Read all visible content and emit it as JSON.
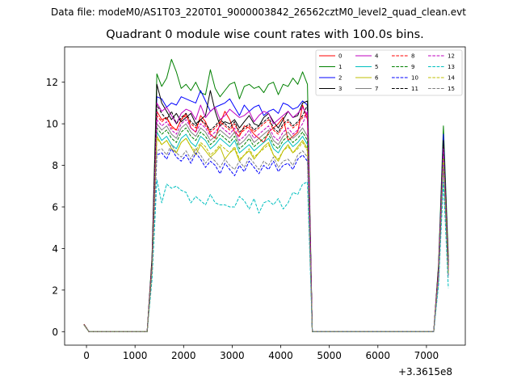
{
  "suptitle": "Data file: modeM0/AS1T03_220T01_9000003842_26562cztM0_level2_quad_clean.evt",
  "chart_data": {
    "type": "line",
    "title": "Quadrant 0 module wise count rates with 100.0s bins.",
    "xlabel": "",
    "ylabel": "",
    "x_offset_label": "+3.3615e8",
    "xlim": [
      -450,
      7800
    ],
    "ylim": [
      -0.65,
      13.7
    ],
    "xticks": [
      0,
      1000,
      2000,
      3000,
      4000,
      5000,
      6000,
      7000
    ],
    "xtick_labels": [
      "0",
      "1000",
      "2000",
      "3000",
      "4000",
      "5000",
      "6000",
      "7000"
    ],
    "yticks": [
      0,
      2,
      4,
      6,
      8,
      10,
      12
    ],
    "ytick_labels": [
      "0",
      "2",
      "4",
      "6",
      "8",
      "10",
      "12"
    ],
    "grid": false,
    "legend_position": "top-right",
    "legend_columns": 4,
    "x_note": "Points every 100 s: -50..1250 (flat), 1350..4550 (plateau), 4650..7150 (flat), 7250..7350 (spike), 7450 (end).",
    "series": [
      {
        "name": "0",
        "color": "#ff0000",
        "dash": "solid",
        "start": 0.36,
        "ramp": 3.2,
        "spike": 8.2,
        "end": 3.1,
        "plateau": [
          10.6,
          10.2,
          10.3,
          9.9,
          9.7,
          10.2,
          10.5,
          9.8,
          9.6,
          10.4,
          10.1,
          9.5,
          9.3,
          10.0,
          10.6,
          10.2,
          9.6,
          9.4,
          9.9,
          9.8,
          9.5,
          9.3,
          9.1,
          9.6,
          9.8,
          10.0,
          10.3,
          9.2,
          9.4,
          9.6,
          10.9,
          10.2,
          10.6
        ]
      },
      {
        "name": "1",
        "color": "#008000",
        "dash": "solid",
        "start": 0.34,
        "ramp": 3.6,
        "spike": 9.9,
        "end": 3.6,
        "plateau": [
          12.4,
          11.8,
          12.2,
          13.1,
          12.5,
          11.7,
          11.9,
          11.6,
          12.0,
          11.5,
          11.4,
          12.6,
          11.7,
          11.3,
          11.6,
          11.9,
          12.0,
          11.2,
          11.8,
          11.9,
          11.7,
          11.8,
          11.5,
          11.9,
          12.0,
          11.4,
          11.9,
          11.8,
          12.2,
          11.9,
          12.5,
          11.9,
          11.1
        ]
      },
      {
        "name": "2",
        "color": "#0000ff",
        "dash": "solid",
        "start": 0.33,
        "ramp": 3.4,
        "spike": 9.5,
        "end": 3.2,
        "plateau": [
          11.3,
          11.2,
          10.8,
          11.0,
          10.9,
          11.3,
          11.2,
          11.1,
          11.0,
          11.6,
          11.1,
          10.6,
          10.8,
          10.9,
          11.0,
          11.2,
          10.8,
          10.4,
          10.9,
          10.6,
          10.8,
          10.9,
          10.4,
          10.6,
          10.7,
          10.5,
          11.0,
          10.9,
          10.7,
          10.8,
          11.1,
          10.9,
          10.4
        ]
      },
      {
        "name": "3",
        "color": "#000000",
        "dash": "solid",
        "start": 0.35,
        "ramp": 3.5,
        "spike": 9.2,
        "end": 3.3,
        "plateau": [
          11.9,
          11.0,
          10.6,
          10.2,
          10.5,
          10.1,
          10.3,
          10.5,
          10.0,
          10.2,
          10.4,
          11.6,
          10.6,
          9.9,
          10.1,
          10.0,
          10.2,
          9.8,
          10.1,
          10.4,
          10.0,
          9.9,
          10.3,
          10.5,
          10.1,
          9.8,
          10.2,
          10.6,
          10.3,
          10.4,
          11.0,
          11.1,
          10.1
        ]
      },
      {
        "name": "4",
        "color": "#bf00bf",
        "dash": "solid",
        "start": 0.34,
        "ramp": 3.3,
        "spike": 8.8,
        "end": 3.0,
        "plateau": [
          11.0,
          10.6,
          10.8,
          10.4,
          10.0,
          10.5,
          10.7,
          10.6,
          10.2,
          10.9,
          10.3,
          10.6,
          10.8,
          10.2,
          10.4,
          10.7,
          10.5,
          10.3,
          10.4,
          10.6,
          10.1,
          10.4,
          10.6,
          10.5,
          10.0,
          10.2,
          10.4,
          10.6,
          10.3,
          10.5,
          10.8,
          10.4,
          10.2
        ]
      },
      {
        "name": "5",
        "color": "#00bfbf",
        "dash": "solid",
        "start": 0.33,
        "ramp": 3.1,
        "spike": 8.5,
        "end": 2.9,
        "plateau": [
          9.6,
          9.2,
          9.4,
          9.0,
          8.8,
          9.3,
          9.5,
          9.1,
          8.9,
          9.4,
          9.2,
          8.8,
          9.0,
          9.3,
          9.1,
          8.9,
          9.2,
          8.6,
          8.8,
          9.0,
          8.7,
          8.9,
          9.1,
          9.3,
          8.8,
          8.6,
          9.0,
          9.2,
          8.9,
          9.1,
          9.4,
          9.0,
          8.8
        ]
      },
      {
        "name": "6",
        "color": "#bfbf00",
        "dash": "solid",
        "start": 0.32,
        "ramp": 3.0,
        "spike": 8.4,
        "end": 2.8,
        "plateau": [
          9.4,
          9.0,
          9.2,
          8.8,
          8.6,
          9.1,
          9.3,
          8.9,
          8.5,
          9.0,
          8.7,
          8.4,
          8.6,
          8.9,
          8.3,
          8.6,
          8.8,
          8.2,
          8.5,
          8.7,
          8.3,
          8.6,
          8.9,
          9.1,
          8.5,
          8.2,
          8.7,
          9.0,
          8.6,
          8.9,
          9.2,
          8.8,
          8.5
        ]
      },
      {
        "name": "7",
        "color": "#7f7f7f",
        "dash": "solid",
        "start": 0.33,
        "ramp": 3.2,
        "spike": 8.6,
        "end": 3.0,
        "plateau": [
          10.0,
          9.7,
          9.9,
          9.5,
          9.3,
          9.8,
          10.0,
          9.6,
          9.4,
          9.8,
          9.6,
          9.2,
          9.4,
          9.7,
          9.5,
          9.3,
          9.6,
          9.0,
          9.2,
          9.5,
          9.1,
          9.3,
          9.5,
          9.7,
          9.2,
          9.0,
          9.4,
          9.6,
          9.3,
          9.5,
          9.8,
          9.4,
          9.1
        ]
      },
      {
        "name": "8",
        "color": "#ff0000",
        "dash": "dashed",
        "start": 0.35,
        "ramp": 3.3,
        "spike": 8.9,
        "end": 3.1,
        "plateau": [
          10.4,
          10.1,
          10.3,
          9.8,
          9.7,
          10.2,
          10.4,
          10.0,
          9.8,
          10.2,
          9.9,
          9.6,
          9.8,
          10.1,
          9.9,
          9.7,
          10.0,
          9.5,
          9.7,
          9.9,
          9.6,
          9.8,
          10.0,
          10.2,
          9.7,
          9.5,
          9.9,
          10.1,
          9.8,
          10.0,
          10.3,
          10.5,
          10.0
        ]
      },
      {
        "name": "9",
        "color": "#008000",
        "dash": "dashed",
        "start": 0.34,
        "ramp": 3.1,
        "spike": 8.7,
        "end": 2.9,
        "plateau": [
          9.8,
          9.5,
          9.7,
          9.3,
          9.1,
          9.6,
          9.8,
          9.4,
          9.2,
          9.6,
          9.4,
          9.0,
          9.2,
          9.5,
          9.3,
          9.1,
          9.4,
          8.8,
          9.0,
          9.3,
          8.9,
          9.1,
          9.3,
          9.5,
          9.0,
          8.8,
          9.2,
          9.4,
          9.1,
          9.3,
          9.6,
          9.2,
          8.9
        ]
      },
      {
        "name": "10",
        "color": "#0000ff",
        "dash": "dashed",
        "start": 0.33,
        "ramp": 2.8,
        "spike": 8.2,
        "end": 2.7,
        "plateau": [
          8.5,
          8.6,
          8.3,
          8.8,
          8.4,
          8.2,
          8.5,
          8.1,
          8.6,
          8.3,
          7.9,
          8.2,
          8.0,
          7.6,
          8.1,
          7.8,
          7.5,
          8.0,
          7.7,
          8.2,
          7.9,
          7.6,
          8.0,
          7.8,
          8.2,
          7.7,
          8.0,
          8.1,
          7.8,
          8.3,
          8.5,
          8.2,
          7.9
        ]
      },
      {
        "name": "11",
        "color": "#000000",
        "dash": "dashed",
        "start": 0.34,
        "ramp": 3.3,
        "spike": 9.0,
        "end": 3.2,
        "plateau": [
          10.9,
          10.5,
          10.2,
          10.6,
          10.0,
          10.3,
          10.5,
          10.1,
          9.9,
          10.2,
          10.0,
          9.7,
          9.9,
          10.2,
          10.0,
          9.8,
          10.1,
          9.6,
          9.8,
          10.0,
          9.7,
          9.9,
          10.1,
          10.3,
          9.8,
          9.6,
          10.0,
          10.2,
          9.9,
          10.1,
          10.4,
          10.9,
          10.3
        ]
      },
      {
        "name": "12",
        "color": "#bf00bf",
        "dash": "dashed",
        "start": 0.33,
        "ramp": 3.2,
        "spike": 8.8,
        "end": 3.0,
        "plateau": [
          10.2,
          9.9,
          10.1,
          9.7,
          9.5,
          10.0,
          10.2,
          9.8,
          9.6,
          10.0,
          9.8,
          9.4,
          9.6,
          9.9,
          9.7,
          9.5,
          9.8,
          9.2,
          9.4,
          9.7,
          9.3,
          9.5,
          9.7,
          9.9,
          9.4,
          9.2,
          9.6,
          9.8,
          9.5,
          9.7,
          10.0,
          10.6,
          9.9
        ]
      },
      {
        "name": "13",
        "color": "#00bfbf",
        "dash": "dashed",
        "start": 0.32,
        "ramp": 2.5,
        "spike": 7.2,
        "end": 2.1,
        "plateau": [
          7.3,
          6.2,
          7.1,
          6.9,
          7.0,
          6.8,
          6.7,
          6.2,
          6.5,
          6.3,
          6.1,
          6.6,
          6.2,
          6.1,
          6.1,
          6.0,
          6.0,
          6.5,
          6.3,
          5.9,
          6.4,
          5.7,
          6.2,
          6.3,
          6.1,
          6.4,
          5.9,
          6.2,
          6.7,
          6.6,
          7.1,
          7.2,
          7.8
        ]
      },
      {
        "name": "14",
        "color": "#bfbf00",
        "dash": "dashed",
        "start": 0.32,
        "ramp": 3.0,
        "spike": 8.3,
        "end": 2.8,
        "plateau": [
          9.3,
          9.0,
          9.2,
          8.8,
          8.6,
          9.1,
          9.3,
          8.9,
          8.7,
          9.1,
          8.9,
          8.5,
          8.7,
          9.0,
          8.8,
          8.6,
          8.9,
          8.3,
          8.5,
          8.8,
          8.4,
          8.6,
          8.8,
          9.0,
          8.5,
          8.3,
          8.7,
          8.9,
          8.6,
          8.8,
          9.1,
          8.7,
          8.4
        ]
      },
      {
        "name": "15",
        "color": "#7f7f7f",
        "dash": "dashed",
        "start": 0.33,
        "ramp": 2.9,
        "spike": 8.0,
        "end": 2.6,
        "plateau": [
          8.7,
          8.8,
          8.5,
          9.0,
          8.6,
          8.4,
          8.7,
          8.3,
          8.8,
          8.5,
          8.1,
          8.4,
          8.2,
          7.9,
          8.3,
          8.0,
          7.8,
          8.2,
          7.9,
          8.4,
          8.1,
          7.8,
          8.2,
          8.0,
          8.4,
          7.9,
          8.2,
          8.3,
          8.0,
          8.5,
          8.7,
          8.4,
          8.1
        ]
      }
    ]
  }
}
